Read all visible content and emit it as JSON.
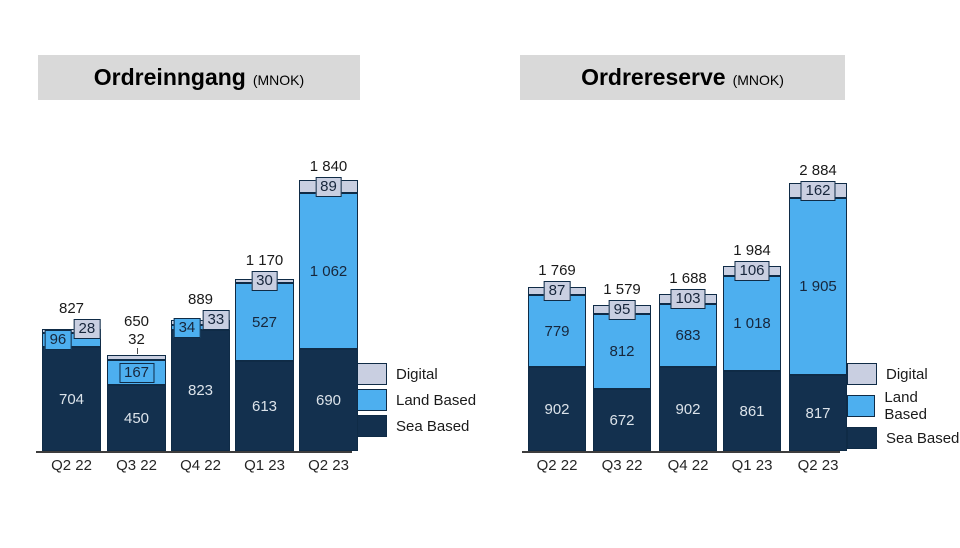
{
  "colors": {
    "sea": "#13304E",
    "land": "#4DAFEF",
    "digital": "#C9CFE1",
    "border": "#0F2B46",
    "banner_bg": "#D9D9D9",
    "axis": "#3D3D3D",
    "text_on_sea": "#DCE3EA",
    "text_on_light": "#17263B"
  },
  "chart_data": [
    {
      "type": "bar",
      "stacked": true,
      "title": "Ordreinngang",
      "unit_label": "(MNOK)",
      "categories": [
        "Q2 22",
        "Q3 22",
        "Q4 22",
        "Q1 23",
        "Q2 23"
      ],
      "series": [
        {
          "name": "Sea Based",
          "key": "sea",
          "values": [
            704,
            450,
            823,
            613,
            690
          ],
          "labels": [
            "704",
            "450",
            "823",
            "613",
            "690"
          ]
        },
        {
          "name": "Land Based",
          "key": "land",
          "values": [
            96,
            167,
            34,
            527,
            1062
          ],
          "labels": [
            "96",
            "167",
            "34",
            "527",
            "1 062"
          ]
        },
        {
          "name": "Digital",
          "key": "digital",
          "values": [
            28,
            32,
            33,
            30,
            89
          ],
          "labels": [
            "28",
            "32",
            "33",
            "30",
            "89"
          ]
        }
      ],
      "totals": [
        827,
        650,
        889,
        1170,
        1840
      ],
      "total_labels": [
        "827",
        "650",
        "889",
        "1 170",
        "1 840"
      ],
      "legend": [
        "Digital",
        "Land Based",
        "Sea Based"
      ],
      "label_layout": {
        "sea": [
          "in",
          "in",
          "in",
          "in",
          "in"
        ],
        "land": [
          "box-left",
          "box-center",
          "box-left",
          "in",
          "in"
        ],
        "digital": [
          "box-right-up",
          "text-above",
          "box-right-up",
          "box-center",
          "box-center"
        ]
      }
    },
    {
      "type": "bar",
      "stacked": true,
      "title": "Ordrereserve",
      "unit_label": "(MNOK)",
      "categories": [
        "Q2 22",
        "Q3 22",
        "Q4 22",
        "Q1 23",
        "Q2 23"
      ],
      "series": [
        {
          "name": "Sea Based",
          "key": "sea",
          "values": [
            902,
            672,
            902,
            861,
            817
          ],
          "labels": [
            "902",
            "672",
            "902",
            "861",
            "817"
          ]
        },
        {
          "name": "Land Based",
          "key": "land",
          "values": [
            779,
            812,
            683,
            1018,
            1905
          ],
          "labels": [
            "779",
            "812",
            "683",
            "1 018",
            "1 905"
          ]
        },
        {
          "name": "Digital",
          "key": "digital",
          "values": [
            87,
            95,
            103,
            106,
            162
          ],
          "labels": [
            "87",
            "95",
            "103",
            "106",
            "162"
          ]
        }
      ],
      "totals": [
        1769,
        1579,
        1688,
        1984,
        2884
      ],
      "total_labels": [
        "1 769",
        "1 579",
        "1 688",
        "1 984",
        "2 884"
      ],
      "legend": [
        "Digital",
        "Land Based",
        "Sea Based"
      ],
      "label_layout": {
        "sea": [
          "in",
          "in",
          "in",
          "in",
          "in"
        ],
        "land": [
          "in",
          "in",
          "in",
          "in",
          "in"
        ],
        "digital": [
          "box-center",
          "box-center",
          "box-center",
          "box-center",
          "box-center"
        ]
      }
    }
  ]
}
